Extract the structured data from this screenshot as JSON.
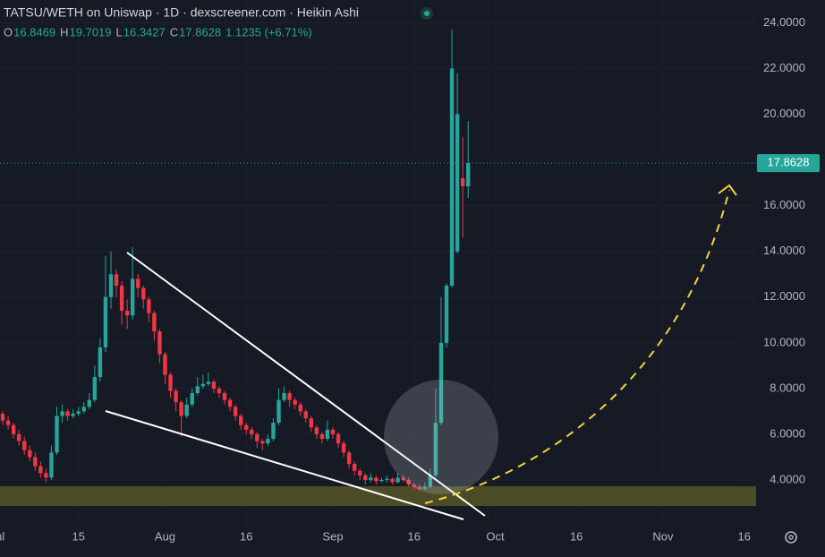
{
  "chart_data": {
    "type": "candlestick",
    "title": "TATSU/WETH on Uniswap · 1D · dexscreener.com · Heikin Ashi",
    "ohlc_labels": [
      "O",
      "H",
      "L",
      "C"
    ],
    "change_label": "1.1235 (+6.71%)",
    "up_color": "#26a69a",
    "down_color": "#f23645",
    "x": [
      1,
      2,
      3,
      4,
      5,
      6,
      7,
      8,
      9,
      10,
      11,
      12,
      13,
      14,
      15,
      16,
      17,
      18,
      19,
      20,
      21,
      22,
      23,
      24,
      25,
      26,
      27,
      28,
      29,
      30,
      31,
      32,
      33,
      34,
      35,
      36,
      37,
      38,
      39,
      40,
      41,
      42,
      43,
      44,
      45,
      46,
      47,
      48,
      49,
      50,
      51,
      52,
      53,
      54,
      55,
      56,
      57,
      58,
      59,
      60,
      61,
      62,
      63,
      64,
      65,
      66,
      67,
      68,
      69,
      70,
      71,
      72,
      73,
      74,
      75,
      76,
      77,
      78,
      79,
      80,
      81,
      82,
      83,
      84,
      85,
      86,
      87
    ],
    "open": [
      6.9,
      6.6,
      6.4,
      6.0,
      5.7,
      5.3,
      5.0,
      4.6,
      4.3,
      4.1,
      5.2,
      6.8,
      7.0,
      6.8,
      6.9,
      7.0,
      7.2,
      7.5,
      8.5,
      9.8,
      12.0,
      13.0,
      12.5,
      11.4,
      11.2,
      12.8,
      12.4,
      11.9,
      11.3,
      10.5,
      9.5,
      8.6,
      7.9,
      7.4,
      6.8,
      7.3,
      7.8,
      8.1,
      8.2,
      8.3,
      8.0,
      7.8,
      7.5,
      7.2,
      6.8,
      6.4,
      6.2,
      6.0,
      5.7,
      5.6,
      5.8,
      6.5,
      7.5,
      7.8,
      7.5,
      7.3,
      7.0,
      6.7,
      6.3,
      6.0,
      5.8,
      6.2,
      6.0,
      5.6,
      5.2,
      4.7,
      4.4,
      4.2,
      4.0,
      4.1,
      3.95,
      4.0,
      4.05,
      3.9,
      4.1,
      4.0,
      3.8,
      3.7,
      3.6,
      3.7,
      4.2,
      6.5,
      10.0,
      12.5,
      14.0,
      17.2,
      16.8469
    ],
    "high": [
      7.0,
      6.8,
      6.5,
      6.2,
      5.9,
      5.5,
      5.2,
      4.8,
      4.5,
      5.5,
      7.2,
      7.3,
      7.1,
      7.1,
      7.2,
      7.4,
      7.8,
      9.0,
      10.2,
      13.8,
      14.0,
      13.2,
      12.7,
      11.9,
      14.2,
      13.0,
      12.5,
      12.0,
      11.4,
      10.6,
      9.6,
      8.7,
      8.0,
      7.5,
      7.6,
      8.0,
      8.5,
      8.6,
      8.7,
      8.4,
      8.1,
      7.9,
      7.6,
      7.3,
      6.9,
      6.5,
      6.3,
      6.1,
      5.8,
      6.0,
      6.7,
      8.0,
      8.1,
      7.9,
      7.6,
      7.4,
      7.1,
      6.8,
      6.4,
      6.1,
      6.6,
      6.3,
      6.1,
      5.7,
      5.3,
      4.8,
      4.5,
      4.3,
      4.3,
      4.2,
      4.1,
      4.2,
      4.1,
      4.3,
      4.2,
      4.1,
      3.9,
      3.8,
      3.9,
      4.5,
      8.0,
      12.0,
      12.6,
      23.7,
      21.8,
      19.0,
      19.7019
    ],
    "low": [
      6.4,
      6.2,
      5.8,
      5.5,
      5.1,
      4.8,
      4.4,
      4.1,
      3.9,
      4.0,
      5.1,
      6.5,
      6.6,
      6.7,
      6.8,
      6.9,
      7.1,
      7.4,
      8.3,
      9.6,
      11.5,
      12.0,
      10.8,
      10.6,
      11.0,
      12.0,
      11.5,
      10.9,
      10.1,
      9.1,
      8.2,
      7.6,
      7.0,
      5.9,
      6.7,
      7.2,
      7.7,
      8.0,
      8.1,
      7.8,
      7.6,
      7.3,
      7.0,
      6.6,
      6.2,
      6.0,
      5.8,
      5.4,
      5.3,
      5.5,
      5.7,
      6.4,
      7.4,
      7.2,
      7.1,
      6.8,
      6.5,
      6.1,
      5.8,
      5.6,
      5.7,
      5.8,
      5.4,
      5.0,
      4.5,
      4.2,
      4.0,
      3.8,
      3.9,
      3.8,
      3.9,
      3.9,
      3.8,
      3.85,
      3.9,
      3.7,
      3.6,
      3.5,
      3.55,
      3.65,
      4.1,
      6.4,
      9.8,
      12.4,
      13.9,
      14.6,
      16.3427
    ],
    "close": [
      6.6,
      6.4,
      6.0,
      5.7,
      5.3,
      5.0,
      4.6,
      4.3,
      4.1,
      5.2,
      6.8,
      7.0,
      6.8,
      6.9,
      7.0,
      7.2,
      7.5,
      8.5,
      9.8,
      12.0,
      13.0,
      12.5,
      11.4,
      11.2,
      12.8,
      12.4,
      11.9,
      11.3,
      10.5,
      9.5,
      8.6,
      7.9,
      7.4,
      6.8,
      7.3,
      7.8,
      8.1,
      8.2,
      8.3,
      8.0,
      7.8,
      7.5,
      7.2,
      6.8,
      6.4,
      6.2,
      6.0,
      5.7,
      5.6,
      5.8,
      6.5,
      7.5,
      7.8,
      7.5,
      7.3,
      7.0,
      6.7,
      6.3,
      6.0,
      5.8,
      6.2,
      6.0,
      5.6,
      5.2,
      4.7,
      4.4,
      4.2,
      4.0,
      4.1,
      3.95,
      4.0,
      4.05,
      3.9,
      4.1,
      4.0,
      3.8,
      3.7,
      3.6,
      3.7,
      4.2,
      6.5,
      10.0,
      12.5,
      22.0,
      20.0,
      16.85,
      17.8628
    ],
    "xlim": [
      0.5,
      140.2
    ],
    "xticks": [
      {
        "value": 0,
        "label": "Jul"
      },
      15,
      {
        "value": 31,
        "label": "Aug"
      },
      {
        "value": 46,
        "label": "16"
      },
      {
        "value": 62,
        "label": "Sep"
      },
      {
        "value": 77,
        "label": "16"
      },
      {
        "value": 92,
        "label": "Oct"
      },
      {
        "value": 107,
        "label": "16"
      },
      {
        "value": 123,
        "label": "Nov"
      },
      {
        "value": 138,
        "label": "16"
      }
    ],
    "ylim": [
      2,
      25
    ],
    "yticks": [
      {
        "value": 4,
        "label": "4.0000"
      },
      {
        "value": 6,
        "label": "6.0000"
      },
      {
        "value": 8,
        "label": "8.0000"
      },
      {
        "value": 10,
        "label": "10.0000"
      },
      {
        "value": 12,
        "label": "12.0000"
      },
      {
        "value": 14,
        "label": "14.0000"
      },
      {
        "value": 16,
        "label": "16.0000"
      },
      {
        "value": 18,
        "label": "18.0000"
      },
      {
        "value": 20,
        "label": "20.0000"
      },
      {
        "value": 22,
        "label": "22.0000"
      },
      {
        "value": 24,
        "label": "24.0000"
      }
    ],
    "grid": true
  }
}
